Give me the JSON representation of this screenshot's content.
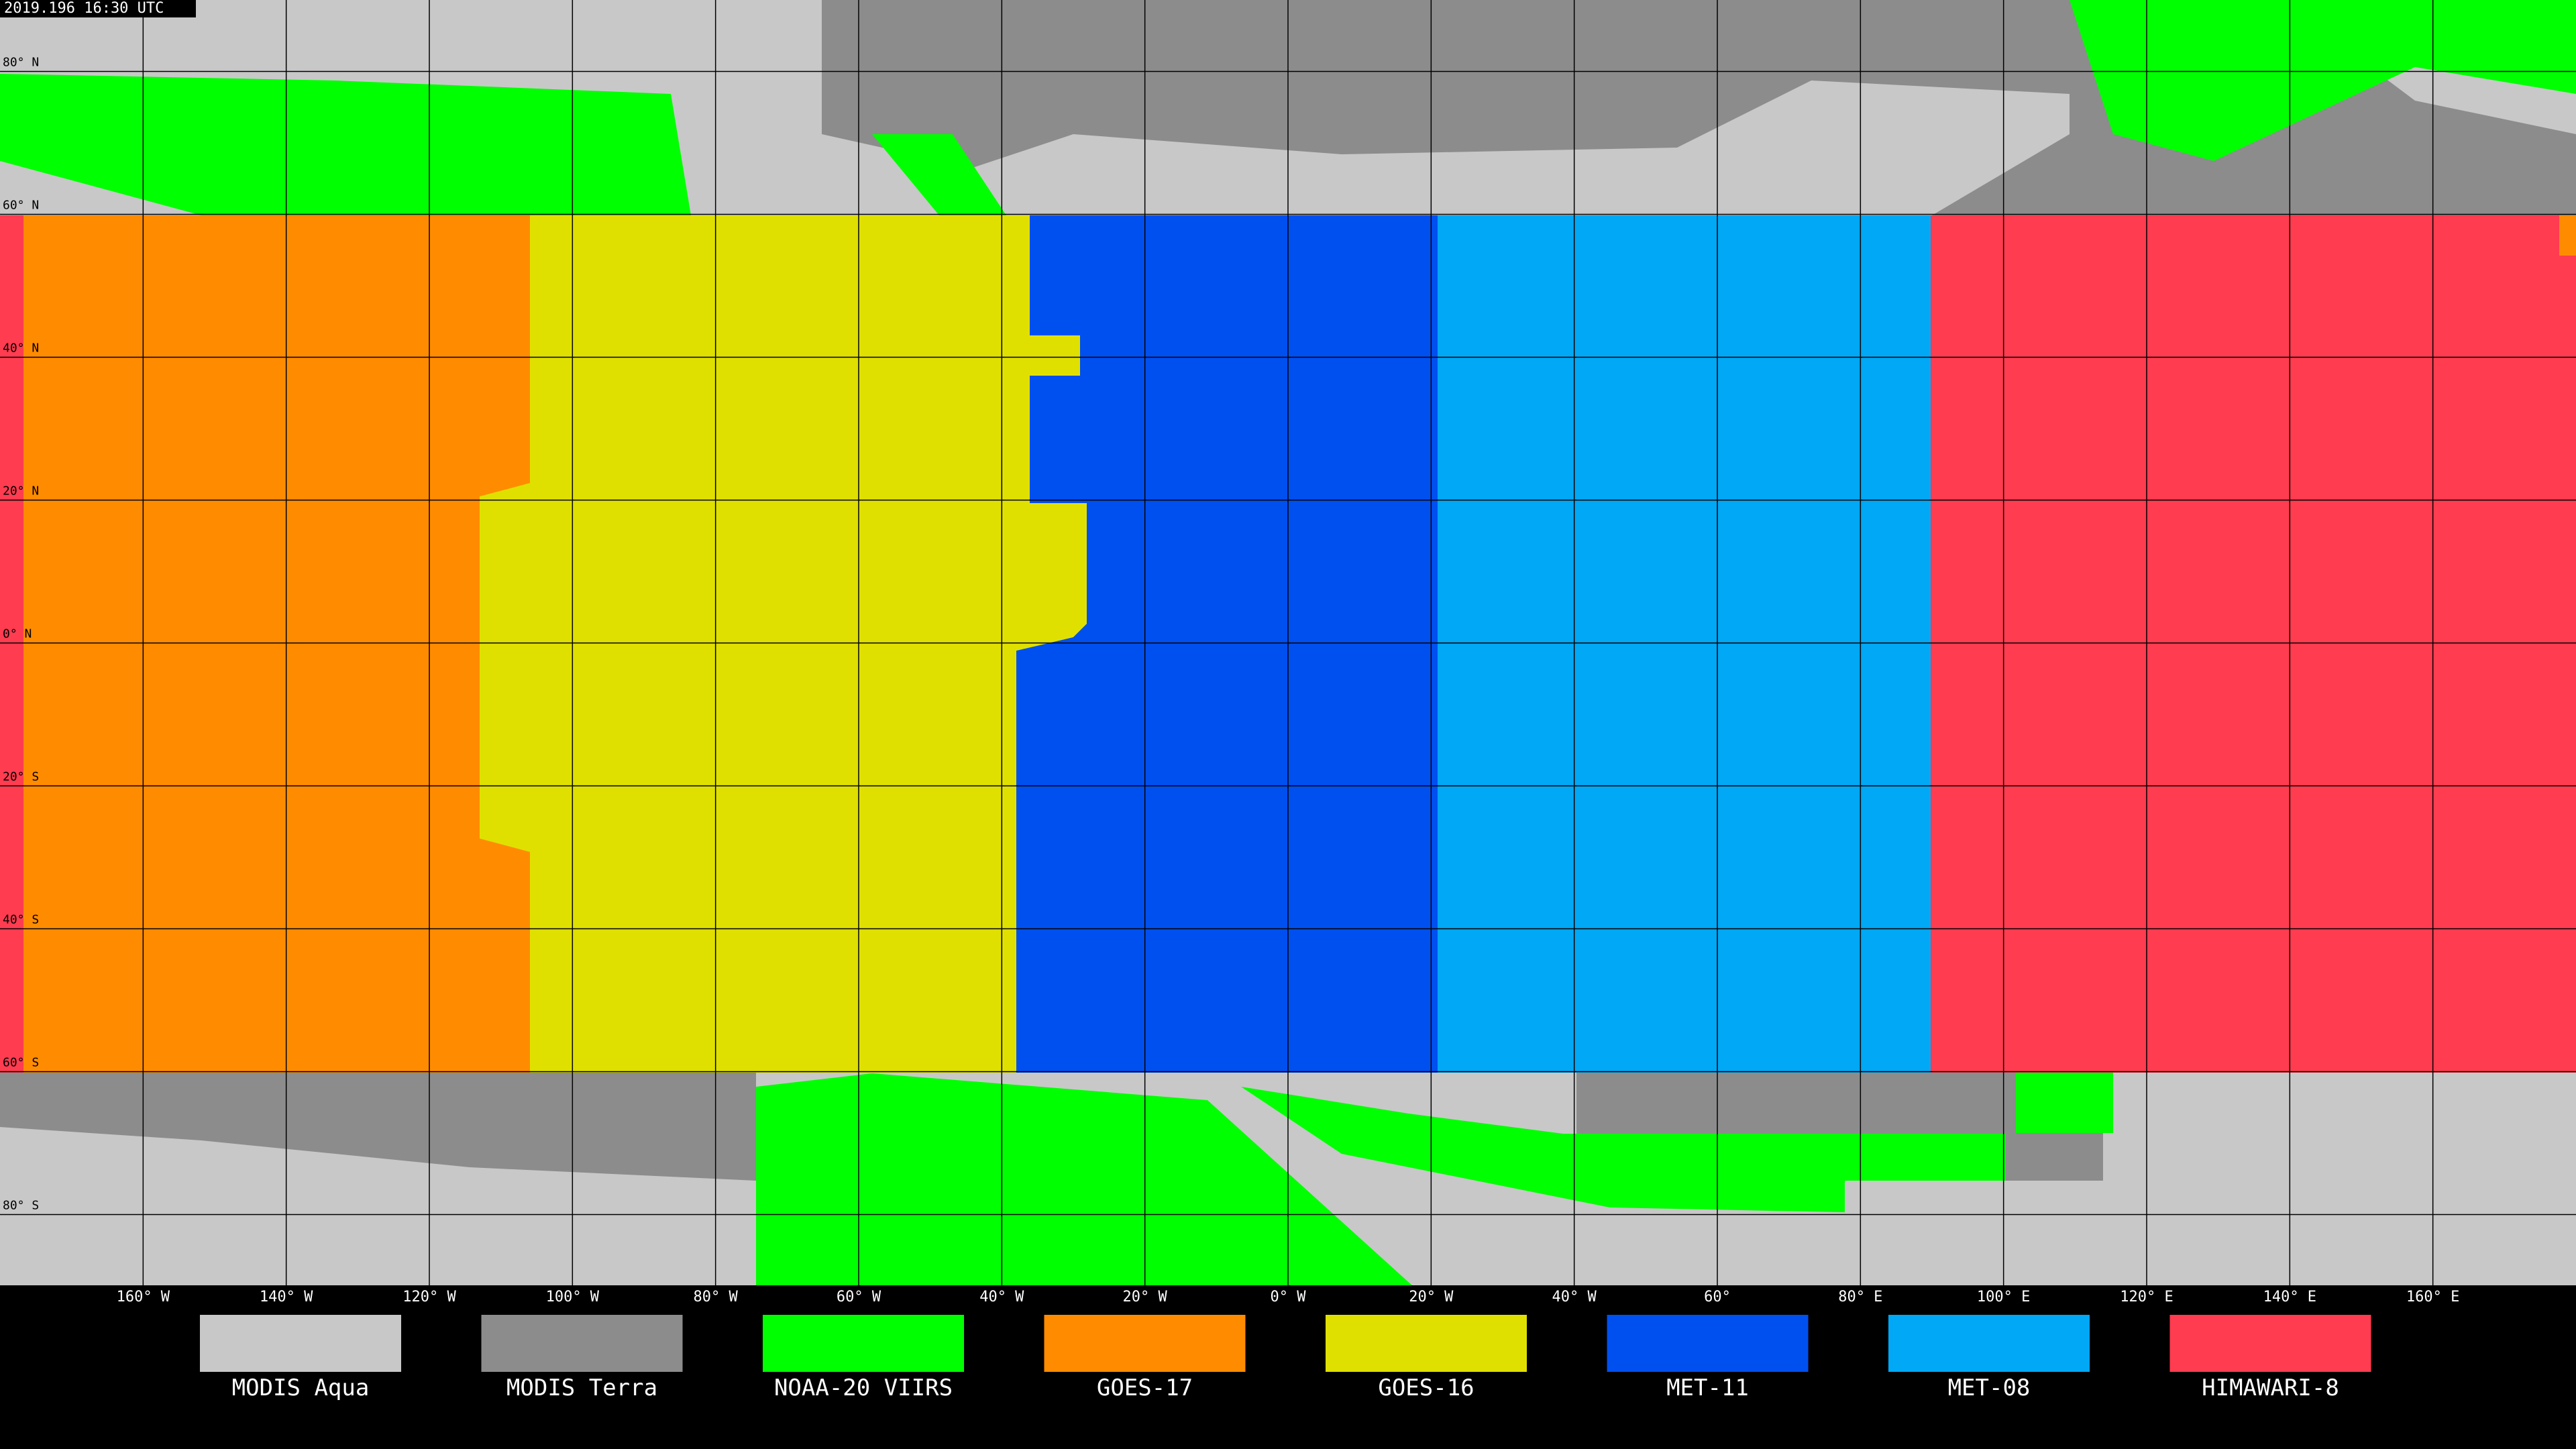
{
  "timestamp": "2019.196 16:30 UTC",
  "lat_labels": [
    "80° N",
    "60° N",
    "40° N",
    "20° N",
    "0° N",
    "20° S",
    "40° S",
    "60° S",
    "80° S"
  ],
  "lon_labels": [
    "160° W",
    "140° W",
    "120° W",
    "100° W",
    "80° W",
    "60° W",
    "40° W",
    "20° W",
    "0° W",
    "20° W",
    "40° W",
    "60°",
    "80° E",
    "100° E",
    "120° E",
    "140° E",
    "160° E"
  ],
  "legend": [
    {
      "name": "MODIS Aqua",
      "color": "#c8c8c8"
    },
    {
      "name": "MODIS Terra",
      "color": "#8c8c8c"
    },
    {
      "name": "NOAA-20 VIIRS",
      "color": "#00ff00"
    },
    {
      "name": "GOES-17",
      "color": "#ff8c00"
    },
    {
      "name": "GOES-16",
      "color": "#e0e000"
    },
    {
      "name": "MET-11",
      "color": "#0050f0"
    },
    {
      "name": "MET-08",
      "color": "#00a8f5"
    },
    {
      "name": "HIMAWARI-8",
      "color": "#ff3c50"
    }
  ]
}
